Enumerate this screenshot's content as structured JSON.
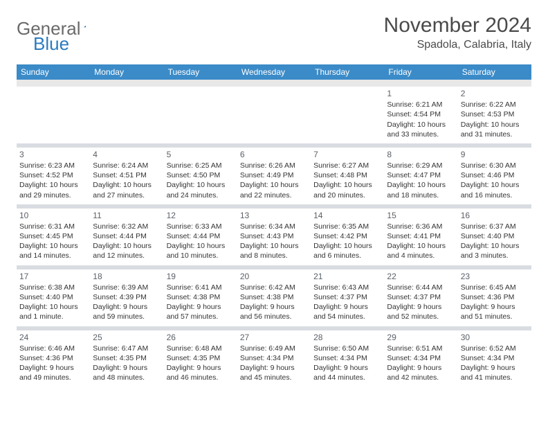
{
  "logo": {
    "word1": "General",
    "word2": "Blue"
  },
  "title": "November 2024",
  "location": "Spadola, Calabria, Italy",
  "colors": {
    "header_bg": "#3b8bc8",
    "header_text": "#ffffff",
    "spacer_bg": "#e8e8e8",
    "sep_bg": "#d9dde2",
    "page_bg": "#ffffff",
    "text": "#333333",
    "daynum": "#5a5f66",
    "logo_gray": "#6a6a6a",
    "logo_blue": "#2b7bbf"
  },
  "day_headers": [
    "Sunday",
    "Monday",
    "Tuesday",
    "Wednesday",
    "Thursday",
    "Friday",
    "Saturday"
  ],
  "weeks": [
    [
      null,
      null,
      null,
      null,
      null,
      {
        "n": "1",
        "sr": "Sunrise: 6:21 AM",
        "ss": "Sunset: 4:54 PM",
        "d1": "Daylight: 10 hours",
        "d2": "and 33 minutes."
      },
      {
        "n": "2",
        "sr": "Sunrise: 6:22 AM",
        "ss": "Sunset: 4:53 PM",
        "d1": "Daylight: 10 hours",
        "d2": "and 31 minutes."
      }
    ],
    [
      {
        "n": "3",
        "sr": "Sunrise: 6:23 AM",
        "ss": "Sunset: 4:52 PM",
        "d1": "Daylight: 10 hours",
        "d2": "and 29 minutes."
      },
      {
        "n": "4",
        "sr": "Sunrise: 6:24 AM",
        "ss": "Sunset: 4:51 PM",
        "d1": "Daylight: 10 hours",
        "d2": "and 27 minutes."
      },
      {
        "n": "5",
        "sr": "Sunrise: 6:25 AM",
        "ss": "Sunset: 4:50 PM",
        "d1": "Daylight: 10 hours",
        "d2": "and 24 minutes."
      },
      {
        "n": "6",
        "sr": "Sunrise: 6:26 AM",
        "ss": "Sunset: 4:49 PM",
        "d1": "Daylight: 10 hours",
        "d2": "and 22 minutes."
      },
      {
        "n": "7",
        "sr": "Sunrise: 6:27 AM",
        "ss": "Sunset: 4:48 PM",
        "d1": "Daylight: 10 hours",
        "d2": "and 20 minutes."
      },
      {
        "n": "8",
        "sr": "Sunrise: 6:29 AM",
        "ss": "Sunset: 4:47 PM",
        "d1": "Daylight: 10 hours",
        "d2": "and 18 minutes."
      },
      {
        "n": "9",
        "sr": "Sunrise: 6:30 AM",
        "ss": "Sunset: 4:46 PM",
        "d1": "Daylight: 10 hours",
        "d2": "and 16 minutes."
      }
    ],
    [
      {
        "n": "10",
        "sr": "Sunrise: 6:31 AM",
        "ss": "Sunset: 4:45 PM",
        "d1": "Daylight: 10 hours",
        "d2": "and 14 minutes."
      },
      {
        "n": "11",
        "sr": "Sunrise: 6:32 AM",
        "ss": "Sunset: 4:44 PM",
        "d1": "Daylight: 10 hours",
        "d2": "and 12 minutes."
      },
      {
        "n": "12",
        "sr": "Sunrise: 6:33 AM",
        "ss": "Sunset: 4:44 PM",
        "d1": "Daylight: 10 hours",
        "d2": "and 10 minutes."
      },
      {
        "n": "13",
        "sr": "Sunrise: 6:34 AM",
        "ss": "Sunset: 4:43 PM",
        "d1": "Daylight: 10 hours",
        "d2": "and 8 minutes."
      },
      {
        "n": "14",
        "sr": "Sunrise: 6:35 AM",
        "ss": "Sunset: 4:42 PM",
        "d1": "Daylight: 10 hours",
        "d2": "and 6 minutes."
      },
      {
        "n": "15",
        "sr": "Sunrise: 6:36 AM",
        "ss": "Sunset: 4:41 PM",
        "d1": "Daylight: 10 hours",
        "d2": "and 4 minutes."
      },
      {
        "n": "16",
        "sr": "Sunrise: 6:37 AM",
        "ss": "Sunset: 4:40 PM",
        "d1": "Daylight: 10 hours",
        "d2": "and 3 minutes."
      }
    ],
    [
      {
        "n": "17",
        "sr": "Sunrise: 6:38 AM",
        "ss": "Sunset: 4:40 PM",
        "d1": "Daylight: 10 hours",
        "d2": "and 1 minute."
      },
      {
        "n": "18",
        "sr": "Sunrise: 6:39 AM",
        "ss": "Sunset: 4:39 PM",
        "d1": "Daylight: 9 hours",
        "d2": "and 59 minutes."
      },
      {
        "n": "19",
        "sr": "Sunrise: 6:41 AM",
        "ss": "Sunset: 4:38 PM",
        "d1": "Daylight: 9 hours",
        "d2": "and 57 minutes."
      },
      {
        "n": "20",
        "sr": "Sunrise: 6:42 AM",
        "ss": "Sunset: 4:38 PM",
        "d1": "Daylight: 9 hours",
        "d2": "and 56 minutes."
      },
      {
        "n": "21",
        "sr": "Sunrise: 6:43 AM",
        "ss": "Sunset: 4:37 PM",
        "d1": "Daylight: 9 hours",
        "d2": "and 54 minutes."
      },
      {
        "n": "22",
        "sr": "Sunrise: 6:44 AM",
        "ss": "Sunset: 4:37 PM",
        "d1": "Daylight: 9 hours",
        "d2": "and 52 minutes."
      },
      {
        "n": "23",
        "sr": "Sunrise: 6:45 AM",
        "ss": "Sunset: 4:36 PM",
        "d1": "Daylight: 9 hours",
        "d2": "and 51 minutes."
      }
    ],
    [
      {
        "n": "24",
        "sr": "Sunrise: 6:46 AM",
        "ss": "Sunset: 4:36 PM",
        "d1": "Daylight: 9 hours",
        "d2": "and 49 minutes."
      },
      {
        "n": "25",
        "sr": "Sunrise: 6:47 AM",
        "ss": "Sunset: 4:35 PM",
        "d1": "Daylight: 9 hours",
        "d2": "and 48 minutes."
      },
      {
        "n": "26",
        "sr": "Sunrise: 6:48 AM",
        "ss": "Sunset: 4:35 PM",
        "d1": "Daylight: 9 hours",
        "d2": "and 46 minutes."
      },
      {
        "n": "27",
        "sr": "Sunrise: 6:49 AM",
        "ss": "Sunset: 4:34 PM",
        "d1": "Daylight: 9 hours",
        "d2": "and 45 minutes."
      },
      {
        "n": "28",
        "sr": "Sunrise: 6:50 AM",
        "ss": "Sunset: 4:34 PM",
        "d1": "Daylight: 9 hours",
        "d2": "and 44 minutes."
      },
      {
        "n": "29",
        "sr": "Sunrise: 6:51 AM",
        "ss": "Sunset: 4:34 PM",
        "d1": "Daylight: 9 hours",
        "d2": "and 42 minutes."
      },
      {
        "n": "30",
        "sr": "Sunrise: 6:52 AM",
        "ss": "Sunset: 4:34 PM",
        "d1": "Daylight: 9 hours",
        "d2": "and 41 minutes."
      }
    ]
  ]
}
